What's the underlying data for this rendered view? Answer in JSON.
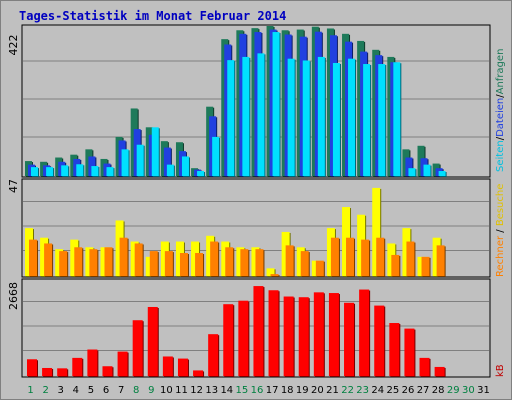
{
  "chart_data": {
    "type": "bar",
    "title": "Tages-Statistik im Monat Februar 2014",
    "days": [
      "1",
      "2",
      "3",
      "4",
      "5",
      "6",
      "7",
      "8",
      "9",
      "10",
      "11",
      "12",
      "13",
      "14",
      "15",
      "16",
      "17",
      "18",
      "19",
      "20",
      "21",
      "22",
      "23",
      "24",
      "25",
      "26",
      "27",
      "28",
      "29",
      "30",
      "31"
    ],
    "weekend_days": [
      "1",
      "2",
      "8",
      "9",
      "15",
      "16",
      "22",
      "23",
      "29",
      "30"
    ],
    "panels": [
      {
        "max_label": "422",
        "ylim": [
          0,
          422
        ],
        "series": [
          {
            "name": "Anfragen",
            "color": "#1e7a5a",
            "values": [
              42,
              40,
              52,
              60,
              75,
              48,
              110,
              190,
              137,
              98,
              95,
              22,
              195,
              385,
              410,
              416,
              422,
              410,
              412,
              420,
              415,
              400,
              380,
              355,
              335,
              75,
              85,
              35,
              0,
              0,
              0
            ]
          },
          {
            "name": "Dateien",
            "color": "#2040e0",
            "values": [
              32,
              30,
              40,
              48,
              55,
              35,
              100,
              132,
              116,
              80,
              70,
              18,
              168,
              370,
              400,
              405,
              412,
              398,
              392,
              406,
              396,
              378,
              350,
              340,
              320,
              52,
              50,
              22,
              0,
              0,
              0
            ]
          },
          {
            "name": "Seiten",
            "color": "#00e0ff",
            "values": [
              25,
              25,
              30,
              33,
              28,
              25,
              75,
              88,
              137,
              32,
              55,
              14,
              110,
              326,
              335,
              345,
              405,
              330,
              325,
              335,
              318,
              330,
              315,
              315,
              320,
              22,
              32,
              14,
              0,
              0,
              0
            ]
          }
        ]
      },
      {
        "max_label": "47",
        "ylim": [
          0,
          47
        ],
        "series": [
          {
            "name": "Besuche",
            "color": "#ffff00",
            "values": [
              25,
              20,
              14,
              19,
              15,
              15,
              29,
              18,
              10,
              18,
              18,
              18,
              21,
              18,
              15,
              15,
              4,
              23,
              15,
              8,
              25,
              36,
              32,
              46,
              17,
              25,
              10,
              20,
              0,
              0,
              0
            ]
          },
          {
            "name": "Rechner",
            "color": "#ff8000",
            "values": [
              19,
              17,
              13,
              15,
              14,
              15,
              20,
              17,
              13,
              13,
              12,
              12,
              18,
              15,
              14,
              14,
              1,
              16,
              13,
              8,
              20,
              20,
              19,
              20,
              11,
              18,
              10,
              16,
              0,
              0,
              0
            ]
          }
        ]
      },
      {
        "max_label": "2668",
        "ylim": [
          0,
          2668
        ],
        "series": [
          {
            "name": "kB",
            "color": "#ff0000",
            "values": [
              480,
              230,
              220,
              520,
              760,
              280,
              700,
              1600,
              1980,
              560,
              500,
              160,
              1200,
              2060,
              2160,
              2580,
              2460,
              2280,
              2260,
              2400,
              2380,
              2100,
              2480,
              2020,
              1520,
              1360,
              520,
              260,
              0,
              0,
              0
            ]
          }
        ]
      }
    ],
    "right_labels": {
      "top": {
        "a": "Anfragen",
        "b": "Dateien",
        "c": "Seiten",
        "sep": "/"
      },
      "middle": {
        "a": "Besuche",
        "b": "Rechner",
        "sep": "/"
      },
      "bottom": "kB"
    },
    "colors": {
      "weekday_label": "#000000",
      "weekend_label": "#008040",
      "title": "#0000c0",
      "background": "#c0c0c0"
    }
  }
}
